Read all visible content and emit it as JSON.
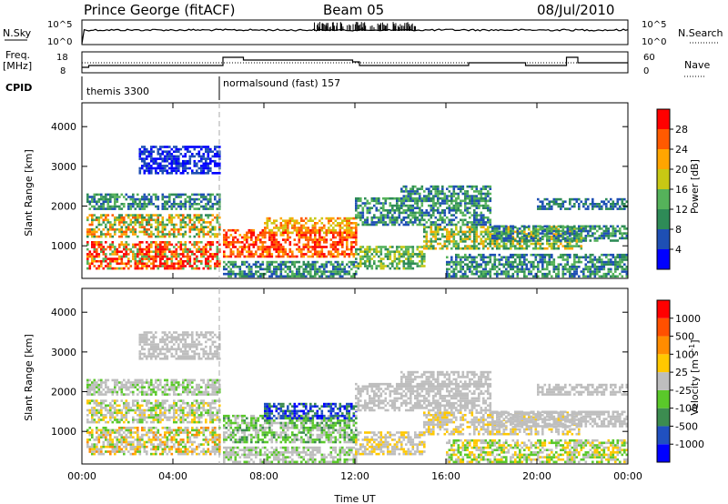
{
  "header": {
    "station": "Prince George (fitACF)",
    "beam": "Beam 05",
    "date": "08/Jul/2010"
  },
  "status_panels": {
    "nsky_label": "N.Sky",
    "nsky_ticks": [
      "10^5",
      "10^0"
    ],
    "nsearch_label": "N.Search",
    "nsearch_ticks": [
      "10^5",
      "10^0"
    ],
    "freq_label": "Freq.",
    "freq_unit": "[MHz]",
    "freq_ticks": [
      "18",
      "8"
    ],
    "nave_label": "Nave",
    "nave_ticks": [
      "60",
      "0"
    ],
    "cpid_label": "CPID",
    "cpid_segments": [
      {
        "name": "themis 3300",
        "start_hour": 0
      },
      {
        "name": "normalsound (fast) 157",
        "start_hour": 6.1
      }
    ]
  },
  "chart_data": [
    {
      "type": "heatmap",
      "name": "power",
      "ylabel": "Slant Range [km]",
      "xlabel": "",
      "x_range_hours": [
        0,
        24
      ],
      "ylim": [
        180,
        4600
      ],
      "y_ticks": [
        1000,
        2000,
        3000,
        4000
      ],
      "colorbar_label": "Power [dB]",
      "colorbar_ticks": [
        4,
        8,
        12,
        16,
        20,
        24,
        28
      ],
      "colorbar_colors": [
        "#0000ff",
        "#1e4fb4",
        "#2e8b57",
        "#55b25a",
        "#c8c814",
        "#ffa500",
        "#ff5a00",
        "#ff0000"
      ]
    },
    {
      "type": "heatmap",
      "name": "velocity",
      "ylabel": "Slant Range [km]",
      "xlabel": "Time UT",
      "x_range_hours": [
        0,
        24
      ],
      "x_ticks": [
        "00:00",
        "04:00",
        "08:00",
        "12:00",
        "16:00",
        "20:00",
        "00:00"
      ],
      "ylim": [
        180,
        4600
      ],
      "y_ticks": [
        1000,
        2000,
        3000,
        4000
      ],
      "colorbar_label": "Velocity [m s-1]",
      "colorbar_ticks": [
        1000,
        500,
        100,
        25,
        -25,
        -100,
        -500,
        -1000
      ],
      "colorbar_colors": [
        "#0000ff",
        "#2050c0",
        "#3c8c50",
        "#5ac82a",
        "#bebebe",
        "#ffc800",
        "#ff8c00",
        "#ff5000",
        "#ff0000"
      ]
    }
  ]
}
